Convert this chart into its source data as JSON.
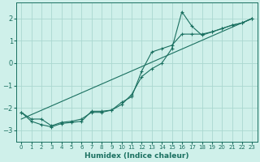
{
  "xlabel": "Humidex (Indice chaleur)",
  "bg_color": "#cff0ea",
  "grid_color": "#aad8d0",
  "line_color": "#1a7060",
  "xlim": [
    -0.5,
    23.5
  ],
  "ylim": [
    -3.5,
    2.7
  ],
  "xticks": [
    0,
    1,
    2,
    3,
    4,
    5,
    6,
    7,
    8,
    9,
    10,
    11,
    12,
    13,
    14,
    15,
    16,
    17,
    18,
    19,
    20,
    21,
    22,
    23
  ],
  "yticks": [
    -3,
    -2,
    -1,
    0,
    1,
    2
  ],
  "line1_x": [
    0,
    1,
    2,
    3,
    4,
    5,
    6,
    7,
    8,
    9,
    10,
    11,
    12,
    13,
    14,
    15,
    16,
    17,
    18,
    19,
    20,
    21,
    22,
    23
  ],
  "line1_y": [
    -2.2,
    -2.6,
    -2.75,
    -2.85,
    -2.7,
    -2.65,
    -2.6,
    -2.15,
    -2.15,
    -2.1,
    -1.85,
    -1.4,
    -0.6,
    -0.25,
    0.0,
    0.65,
    2.3,
    1.65,
    1.25,
    1.4,
    1.55,
    1.7,
    1.8,
    2.0
  ],
  "line2_x": [
    0,
    1,
    2,
    3,
    4,
    5,
    6,
    7,
    8,
    9,
    10,
    11,
    12,
    13,
    14,
    15,
    16,
    17,
    18,
    19,
    20,
    21,
    22,
    23
  ],
  "line2_y": [
    -2.2,
    -2.5,
    -2.5,
    -2.8,
    -2.65,
    -2.6,
    -2.5,
    -2.2,
    -2.2,
    -2.1,
    -1.75,
    -1.5,
    -0.35,
    0.5,
    0.65,
    0.8,
    1.3,
    1.3,
    1.3,
    1.4,
    1.55,
    1.7,
    1.8,
    2.0
  ],
  "line3_x": [
    0,
    23
  ],
  "line3_y": [
    -2.5,
    2.0
  ]
}
